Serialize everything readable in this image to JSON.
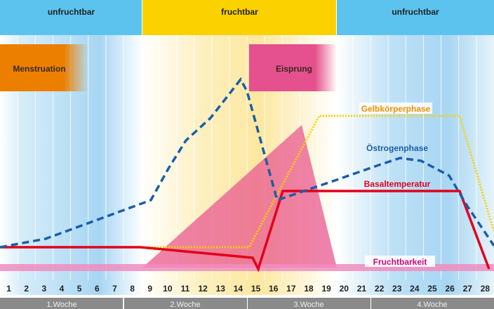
{
  "phases": [
    {
      "label": "unfruchtbar",
      "from_day": 1,
      "to_day": 8,
      "color": "#5bc3ee"
    },
    {
      "label": "fruchtbar",
      "from_day": 9,
      "to_day": 19,
      "color": "#fbd100"
    },
    {
      "label": "unfruchtbar",
      "from_day": 20,
      "to_day": 28,
      "color": "#5bc3ee"
    }
  ],
  "events": [
    {
      "label": "Menstruation",
      "from_day": 1,
      "to_day": 5,
      "color": "#ec7f00"
    },
    {
      "label": "Eisprung",
      "from_day": 15,
      "to_day": 19,
      "color": "#e5508f"
    }
  ],
  "curves": {
    "gelbkoerper": {
      "label": "Gelbkörperphase",
      "color": "#f29100",
      "line_color": "#fbd100"
    },
    "oestrogen": {
      "label": "Östrogenphase",
      "color": "#1a5fa8"
    },
    "basal": {
      "label": "Basaltemperatur",
      "color": "#e2001a"
    },
    "fruchtbarkeit": {
      "label": "Fruchtbarkeit",
      "color": "#d1007a"
    }
  },
  "days": [
    "1",
    "2",
    "3",
    "4",
    "5",
    "6",
    "7",
    "8",
    "9",
    "10",
    "11",
    "12",
    "13",
    "14",
    "15",
    "16",
    "17",
    "18",
    "19",
    "20",
    "21",
    "22",
    "23",
    "24",
    "25",
    "26",
    "27",
    "28"
  ],
  "weeks": [
    "1.Woche",
    "2.Woche",
    "3.Woche",
    "4.Woche"
  ]
}
